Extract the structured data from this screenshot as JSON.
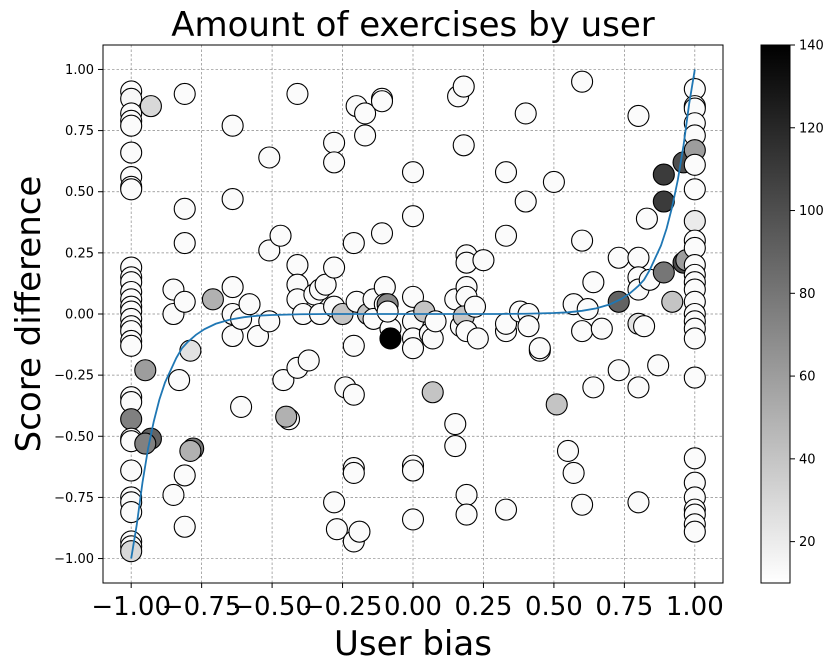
{
  "chart_data": {
    "type": "scatter",
    "title": "Amount of exercises by user",
    "xlabel": "User bias",
    "ylabel": "Score difference",
    "xlim": [
      -1.1,
      1.1
    ],
    "ylim": [
      -1.1,
      1.1
    ],
    "grid": true,
    "x_ticks": [
      -1.0,
      -0.75,
      -0.5,
      -0.25,
      0.0,
      0.25,
      0.5,
      0.75,
      1.0
    ],
    "x_tick_labels": [
      "−1.00",
      "−0.75",
      "−0.50",
      "−0.25",
      "0.00",
      "0.25",
      "0.50",
      "0.75",
      "1.00"
    ],
    "y_ticks": [
      -1.0,
      -0.75,
      -0.5,
      -0.25,
      0.0,
      0.25,
      0.5,
      0.75,
      1.0
    ],
    "y_tick_labels": [
      "−1.00",
      "−0.75",
      "−0.50",
      "−0.25",
      "0.00",
      "0.25",
      "0.50",
      "0.75",
      "1.00"
    ],
    "colorbar": {
      "colormap": "gray_r",
      "min": 10,
      "max": 140,
      "ticks": [
        20,
        40,
        60,
        80,
        100,
        120,
        140
      ],
      "tick_labels": [
        "20",
        "40",
        "60",
        "80",
        "100",
        "120",
        "140"
      ]
    },
    "marker_edge_color": "#000000",
    "curve_color": "#1f77b4",
    "curve_samples": [
      [
        -1.0,
        -1.0
      ],
      [
        -0.98,
        -0.86
      ],
      [
        -0.96,
        -0.69
      ],
      [
        -0.94,
        -0.55
      ],
      [
        -0.92,
        -0.44
      ],
      [
        -0.9,
        -0.35
      ],
      [
        -0.88,
        -0.28
      ],
      [
        -0.86,
        -0.23
      ],
      [
        -0.84,
        -0.18
      ],
      [
        -0.82,
        -0.14
      ],
      [
        -0.8,
        -0.115
      ],
      [
        -0.77,
        -0.085
      ],
      [
        -0.74,
        -0.062
      ],
      [
        -0.7,
        -0.04
      ],
      [
        -0.65,
        -0.023
      ],
      [
        -0.6,
        -0.013
      ],
      [
        -0.55,
        -0.007
      ],
      [
        -0.5,
        -0.004
      ],
      [
        -0.4,
        -0.001
      ],
      [
        -0.3,
        0.0
      ],
      [
        0.0,
        0.0
      ],
      [
        0.3,
        0.0
      ],
      [
        0.4,
        0.001
      ],
      [
        0.5,
        0.004
      ],
      [
        0.55,
        0.007
      ],
      [
        0.6,
        0.013
      ],
      [
        0.65,
        0.023
      ],
      [
        0.7,
        0.04
      ],
      [
        0.74,
        0.062
      ],
      [
        0.77,
        0.085
      ],
      [
        0.8,
        0.115
      ],
      [
        0.82,
        0.14
      ],
      [
        0.84,
        0.18
      ],
      [
        0.86,
        0.23
      ],
      [
        0.88,
        0.28
      ],
      [
        0.9,
        0.35
      ],
      [
        0.92,
        0.44
      ],
      [
        0.94,
        0.55
      ],
      [
        0.96,
        0.69
      ],
      [
        0.98,
        0.86
      ],
      [
        1.0,
        1.0
      ]
    ],
    "points": [
      [
        -1.0,
        0.91,
        12
      ],
      [
        -1.0,
        0.88,
        14
      ],
      [
        -1.0,
        0.82,
        12
      ],
      [
        -1.0,
        0.79,
        12
      ],
      [
        -1.0,
        0.77,
        12
      ],
      [
        -1.0,
        0.66,
        12
      ],
      [
        -1.0,
        0.56,
        12
      ],
      [
        -1.0,
        0.52,
        12
      ],
      [
        -1.0,
        0.51,
        12
      ],
      [
        -1.0,
        0.19,
        12
      ],
      [
        -1.0,
        0.15,
        12
      ],
      [
        -1.0,
        0.13,
        12
      ],
      [
        -1.0,
        0.09,
        12
      ],
      [
        -1.0,
        0.06,
        12
      ],
      [
        -1.0,
        0.03,
        12
      ],
      [
        -1.0,
        0.01,
        12
      ],
      [
        -1.0,
        -0.02,
        12
      ],
      [
        -1.0,
        -0.05,
        12
      ],
      [
        -1.0,
        -0.07,
        12
      ],
      [
        -1.0,
        -0.11,
        12
      ],
      [
        -1.0,
        -0.13,
        12
      ],
      [
        -1.0,
        -0.34,
        12
      ],
      [
        -1.0,
        -0.36,
        12
      ],
      [
        -1.0,
        -0.43,
        75
      ],
      [
        -1.0,
        -0.51,
        12
      ],
      [
        -1.0,
        -0.52,
        12
      ],
      [
        -1.0,
        -0.64,
        12
      ],
      [
        -1.0,
        -0.75,
        12
      ],
      [
        -1.0,
        -0.77,
        12
      ],
      [
        -1.0,
        -0.81,
        12
      ],
      [
        -1.0,
        -0.93,
        12
      ],
      [
        -1.0,
        -0.95,
        12
      ],
      [
        -1.0,
        -0.97,
        30
      ],
      [
        -0.93,
        0.85,
        30
      ],
      [
        -0.95,
        -0.23,
        60
      ],
      [
        -0.93,
        -0.51,
        90
      ],
      [
        -0.95,
        -0.53,
        75
      ],
      [
        -0.85,
        0.1,
        12
      ],
      [
        -0.85,
        0.0,
        12
      ],
      [
        -0.85,
        -0.74,
        12
      ],
      [
        -0.83,
        -0.27,
        12
      ],
      [
        -0.81,
        0.9,
        12
      ],
      [
        -0.81,
        0.43,
        12
      ],
      [
        -0.81,
        0.29,
        12
      ],
      [
        -0.81,
        0.05,
        12
      ],
      [
        -0.81,
        -0.66,
        12
      ],
      [
        -0.81,
        -0.87,
        12
      ],
      [
        -0.79,
        -0.15,
        25
      ],
      [
        -0.78,
        -0.55,
        80
      ],
      [
        -0.79,
        -0.56,
        50
      ],
      [
        -0.71,
        0.06,
        50
      ],
      [
        -0.64,
        0.77,
        12
      ],
      [
        -0.64,
        0.47,
        12
      ],
      [
        -0.64,
        0.11,
        12
      ],
      [
        -0.64,
        0.0,
        12
      ],
      [
        -0.64,
        -0.09,
        12
      ],
      [
        -0.61,
        -0.02,
        12
      ],
      [
        -0.58,
        0.04,
        12
      ],
      [
        -0.61,
        -0.38,
        12
      ],
      [
        -0.55,
        -0.09,
        12
      ],
      [
        -0.51,
        0.64,
        12
      ],
      [
        -0.51,
        0.26,
        12
      ],
      [
        -0.51,
        -0.03,
        12
      ],
      [
        -0.47,
        0.32,
        12
      ],
      [
        -0.46,
        -0.27,
        12
      ],
      [
        -0.44,
        -0.43,
        12
      ],
      [
        -0.45,
        -0.42,
        50
      ],
      [
        -0.41,
        0.9,
        12
      ],
      [
        -0.41,
        0.2,
        12
      ],
      [
        -0.41,
        0.12,
        12
      ],
      [
        -0.41,
        0.06,
        12
      ],
      [
        -0.39,
        0.0,
        12
      ],
      [
        -0.41,
        -0.22,
        12
      ],
      [
        -0.37,
        -0.19,
        12
      ],
      [
        -0.35,
        0.08,
        12
      ],
      [
        -0.33,
        0.0,
        12
      ],
      [
        -0.33,
        0.1,
        12
      ],
      [
        -0.31,
        0.12,
        12
      ],
      [
        -0.28,
        0.7,
        12
      ],
      [
        -0.28,
        0.62,
        12
      ],
      [
        -0.28,
        0.19,
        12
      ],
      [
        -0.28,
        0.03,
        12
      ],
      [
        -0.28,
        -0.77,
        12
      ],
      [
        -0.27,
        -0.88,
        12
      ],
      [
        -0.25,
        0.0,
        40
      ],
      [
        -0.24,
        -0.3,
        12
      ],
      [
        -0.21,
        -0.33,
        12
      ],
      [
        -0.21,
        -0.63,
        12
      ],
      [
        -0.21,
        -0.65,
        12
      ],
      [
        -0.21,
        -0.93,
        12
      ],
      [
        -0.19,
        -0.89,
        12
      ],
      [
        -0.2,
        0.85,
        12
      ],
      [
        -0.21,
        0.29,
        12
      ],
      [
        -0.21,
        -0.13,
        12
      ],
      [
        -0.2,
        0.05,
        12
      ],
      [
        -0.17,
        0.82,
        12
      ],
      [
        -0.17,
        0.73,
        12
      ],
      [
        -0.16,
        0.0,
        40
      ],
      [
        -0.14,
        0.06,
        12
      ],
      [
        -0.14,
        -0.02,
        12
      ],
      [
        -0.11,
        0.88,
        12
      ],
      [
        -0.11,
        0.87,
        12
      ],
      [
        -0.11,
        0.33,
        12
      ],
      [
        -0.1,
        0.11,
        12
      ],
      [
        -0.1,
        0.04,
        12
      ],
      [
        -0.09,
        0.04,
        70
      ],
      [
        -0.08,
        -0.06,
        12
      ],
      [
        -0.08,
        -0.1,
        140
      ],
      [
        -0.09,
        0.01,
        12
      ],
      [
        0.0,
        0.58,
        12
      ],
      [
        0.0,
        0.4,
        12
      ],
      [
        0.0,
        0.07,
        12
      ],
      [
        0.0,
        -0.03,
        12
      ],
      [
        0.0,
        -0.1,
        12
      ],
      [
        0.0,
        -0.14,
        12
      ],
      [
        0.0,
        -0.62,
        12
      ],
      [
        0.0,
        -0.64,
        12
      ],
      [
        0.0,
        -0.84,
        12
      ],
      [
        0.04,
        0.01,
        40
      ],
      [
        0.06,
        -0.08,
        12
      ],
      [
        0.07,
        -0.1,
        12
      ],
      [
        0.07,
        -0.32,
        40
      ],
      [
        0.08,
        -0.03,
        12
      ],
      [
        0.16,
        0.89,
        12
      ],
      [
        0.18,
        0.93,
        12
      ],
      [
        0.15,
        0.06,
        12
      ],
      [
        0.17,
        -0.05,
        12
      ],
      [
        0.15,
        -0.45,
        12
      ],
      [
        0.15,
        -0.54,
        12
      ],
      [
        0.18,
        0.69,
        12
      ],
      [
        0.19,
        0.24,
        12
      ],
      [
        0.19,
        0.21,
        12
      ],
      [
        0.19,
        0.11,
        12
      ],
      [
        0.19,
        0.07,
        12
      ],
      [
        0.18,
        -0.01,
        40
      ],
      [
        0.19,
        -0.07,
        12
      ],
      [
        0.19,
        -0.74,
        12
      ],
      [
        0.19,
        -0.82,
        12
      ],
      [
        0.22,
        0.03,
        12
      ],
      [
        0.25,
        0.22,
        12
      ],
      [
        0.23,
        -0.1,
        12
      ],
      [
        0.33,
        0.58,
        12
      ],
      [
        0.33,
        0.32,
        12
      ],
      [
        0.33,
        -0.07,
        12
      ],
      [
        0.33,
        -0.04,
        12
      ],
      [
        0.33,
        -0.8,
        12
      ],
      [
        0.38,
        0.01,
        12
      ],
      [
        0.4,
        0.82,
        12
      ],
      [
        0.4,
        0.46,
        12
      ],
      [
        0.41,
        0.0,
        12
      ],
      [
        0.41,
        -0.05,
        12
      ],
      [
        0.45,
        -0.15,
        12
      ],
      [
        0.45,
        -0.14,
        12
      ],
      [
        0.5,
        0.54,
        12
      ],
      [
        0.51,
        -0.37,
        40
      ],
      [
        0.55,
        -0.56,
        12
      ],
      [
        0.57,
        -0.65,
        12
      ],
      [
        0.57,
        0.04,
        12
      ],
      [
        0.6,
        0.95,
        12
      ],
      [
        0.6,
        0.3,
        12
      ],
      [
        0.6,
        -0.07,
        12
      ],
      [
        0.6,
        -0.78,
        12
      ],
      [
        0.62,
        0.02,
        12
      ],
      [
        0.64,
        0.13,
        12
      ],
      [
        0.64,
        -0.3,
        12
      ],
      [
        0.67,
        -0.06,
        12
      ],
      [
        0.73,
        0.23,
        12
      ],
      [
        0.73,
        0.05,
        90
      ],
      [
        0.73,
        -0.23,
        12
      ],
      [
        0.8,
        0.81,
        12
      ],
      [
        0.8,
        0.23,
        12
      ],
      [
        0.8,
        0.15,
        12
      ],
      [
        0.8,
        0.1,
        12
      ],
      [
        0.8,
        -0.04,
        25
      ],
      [
        0.8,
        -0.3,
        12
      ],
      [
        0.8,
        -0.77,
        12
      ],
      [
        0.82,
        -0.05,
        12
      ],
      [
        0.83,
        0.39,
        12
      ],
      [
        0.84,
        0.14,
        12
      ],
      [
        0.87,
        -0.21,
        12
      ],
      [
        0.89,
        0.57,
        110
      ],
      [
        0.89,
        0.46,
        110
      ],
      [
        0.89,
        0.17,
        80
      ],
      [
        0.92,
        0.05,
        40
      ],
      [
        0.96,
        0.62,
        100
      ],
      [
        0.96,
        0.21,
        100
      ],
      [
        0.97,
        0.22,
        60
      ],
      [
        1.0,
        0.92,
        12
      ],
      [
        1.0,
        0.85,
        12
      ],
      [
        1.0,
        0.84,
        12
      ],
      [
        1.0,
        0.78,
        12
      ],
      [
        1.0,
        0.73,
        12
      ],
      [
        1.0,
        0.67,
        60
      ],
      [
        1.0,
        0.61,
        12
      ],
      [
        1.0,
        0.51,
        12
      ],
      [
        1.0,
        0.38,
        20
      ],
      [
        1.0,
        0.3,
        12
      ],
      [
        1.0,
        0.27,
        12
      ],
      [
        1.0,
        0.2,
        12
      ],
      [
        1.0,
        0.16,
        12
      ],
      [
        1.0,
        0.13,
        12
      ],
      [
        1.0,
        0.1,
        12
      ],
      [
        1.0,
        0.05,
        12
      ],
      [
        1.0,
        0.0,
        12
      ],
      [
        1.0,
        -0.03,
        12
      ],
      [
        1.0,
        -0.06,
        12
      ],
      [
        1.0,
        -0.1,
        12
      ],
      [
        1.0,
        -0.26,
        12
      ],
      [
        1.0,
        -0.59,
        12
      ],
      [
        1.0,
        -0.69,
        12
      ],
      [
        1.0,
        -0.75,
        12
      ],
      [
        1.0,
        -0.8,
        12
      ],
      [
        1.0,
        -0.82,
        12
      ],
      [
        1.0,
        -0.86,
        12
      ],
      [
        1.0,
        -0.89,
        12
      ]
    ]
  }
}
